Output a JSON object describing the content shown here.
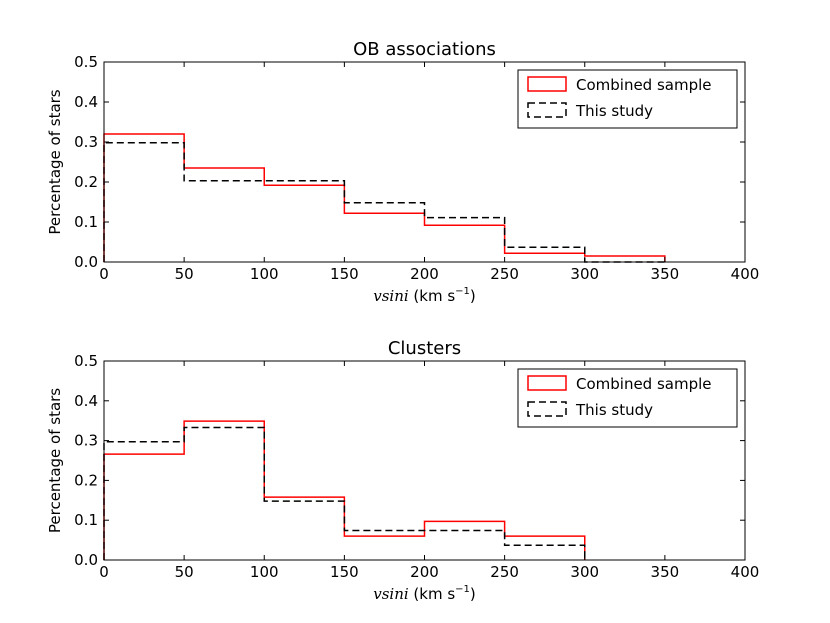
{
  "chart_data": [
    {
      "type": "histogram-step",
      "title": "OB associations",
      "xlabel": {
        "var": "vsini",
        "unit": " (km s",
        "exp": "−1",
        "close": ")"
      },
      "ylabel": "Percentage of stars",
      "xlim": [
        0,
        400
      ],
      "ylim": [
        0,
        0.5
      ],
      "xticks": [
        0,
        50,
        100,
        150,
        200,
        250,
        300,
        350,
        400
      ],
      "yticks": [
        "0.0",
        "0.1",
        "0.2",
        "0.3",
        "0.4",
        "0.5"
      ],
      "legend_position": "top-right",
      "bins": [
        0,
        50,
        100,
        150,
        200,
        250,
        300,
        350
      ],
      "series": [
        {
          "name": "Combined sample",
          "color": "#ff0000",
          "style": "solid",
          "values": [
            0.32,
            0.235,
            0.192,
            0.122,
            0.092,
            0.022,
            0.015
          ]
        },
        {
          "name": "This study",
          "color": "#000000",
          "style": "dashed",
          "values": [
            0.298,
            0.203,
            0.203,
            0.148,
            0.111,
            0.037,
            0.0
          ]
        }
      ]
    },
    {
      "type": "histogram-step",
      "title": "Clusters",
      "xlabel": {
        "var": "vsini",
        "unit": " (km s",
        "exp": "−1",
        "close": ")"
      },
      "ylabel": "Percentage of stars",
      "xlim": [
        0,
        400
      ],
      "ylim": [
        0,
        0.5
      ],
      "xticks": [
        0,
        50,
        100,
        150,
        200,
        250,
        300,
        350,
        400
      ],
      "yticks": [
        "0.0",
        "0.1",
        "0.2",
        "0.3",
        "0.4",
        "0.5"
      ],
      "legend_position": "top-right",
      "bins": [
        0,
        50,
        100,
        150,
        200,
        250,
        300
      ],
      "series": [
        {
          "name": "Combined sample",
          "color": "#ff0000",
          "style": "solid",
          "values": [
            0.266,
            0.349,
            0.158,
            0.06,
            0.097,
            0.06
          ]
        },
        {
          "name": "This study",
          "color": "#000000",
          "style": "dashed",
          "values": [
            0.297,
            0.333,
            0.148,
            0.074,
            0.074,
            0.037
          ]
        }
      ]
    }
  ]
}
